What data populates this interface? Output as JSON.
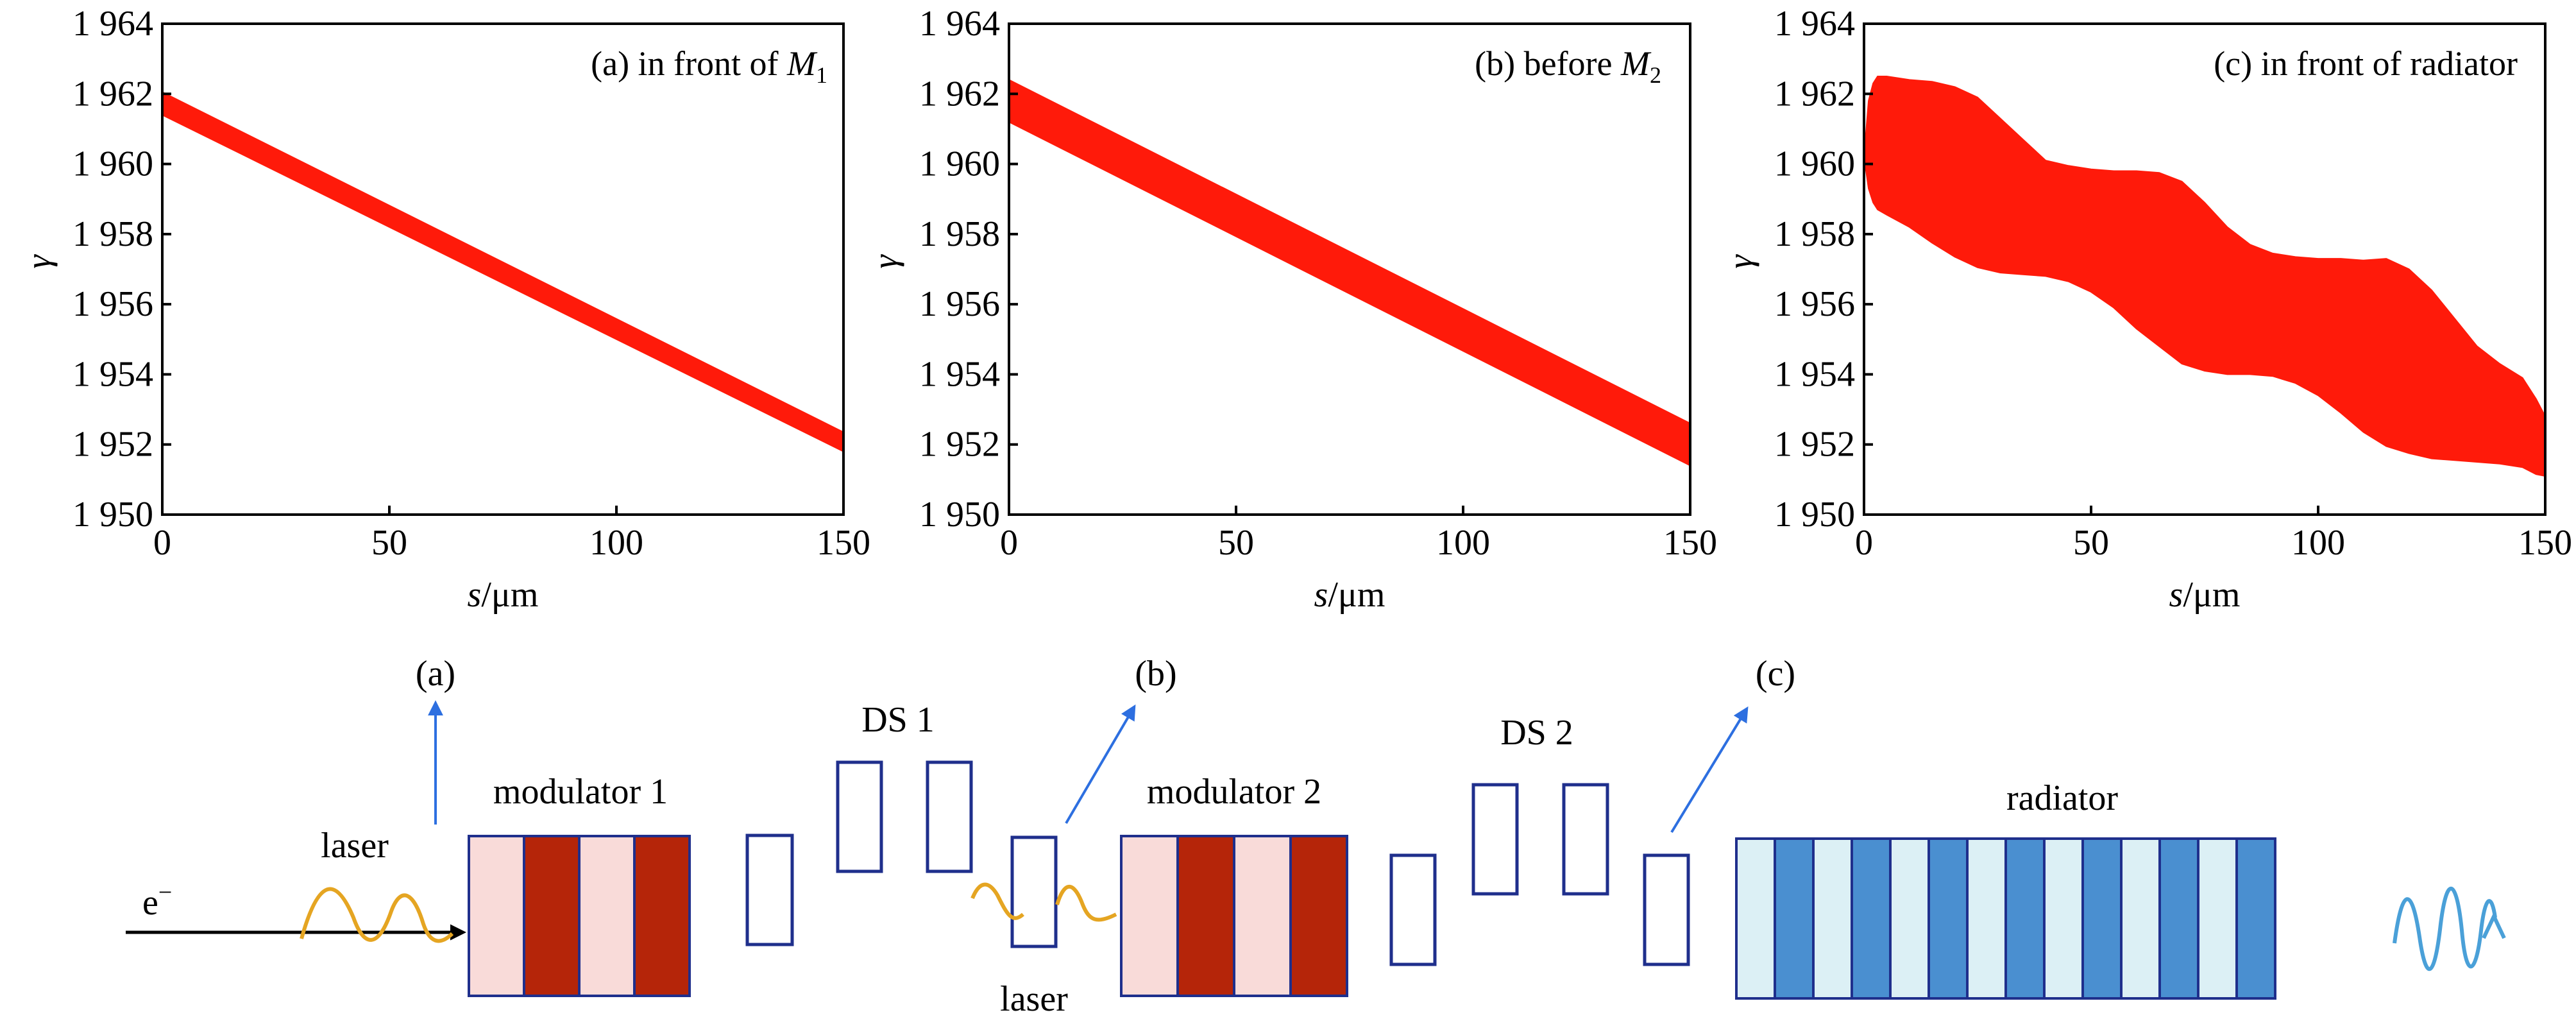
{
  "chart_data": [
    {
      "type": "area",
      "panel_label": "(a) in front of ",
      "panel_label_sym": "M",
      "panel_label_sub": "1",
      "xlabel_sym": "s",
      "xlabel_unit": "/μm",
      "ylabel": "γ",
      "xlim": [
        0,
        150
      ],
      "ylim": [
        1950,
        1964
      ],
      "xticks": [
        "0",
        "50",
        "100",
        "150"
      ],
      "yticks": [
        "1 950",
        "1 952",
        "1 954",
        "1 956",
        "1 958",
        "1 960",
        "1 962",
        "1 964"
      ],
      "series": [
        {
          "color": "#ff1a0a",
          "x": [
            0,
            150
          ],
          "upper": [
            1962.05,
            1952.35
          ],
          "lower": [
            1961.4,
            1951.8
          ]
        }
      ]
    },
    {
      "type": "area",
      "panel_label": "(b) before ",
      "panel_label_sym": "M",
      "panel_label_sub": "2",
      "xlabel_sym": "s",
      "xlabel_unit": "/μm",
      "ylabel": "γ",
      "xlim": [
        0,
        150
      ],
      "ylim": [
        1950,
        1964
      ],
      "xticks": [
        "0",
        "50",
        "100",
        "150"
      ],
      "yticks": [
        "1 950",
        "1 952",
        "1 954",
        "1 956",
        "1 958",
        "1 960",
        "1 962",
        "1 964"
      ],
      "series": [
        {
          "color": "#ff1a0a",
          "x": [
            0,
            150
          ],
          "upper": [
            1962.4,
            1952.6
          ],
          "lower": [
            1961.2,
            1951.4
          ]
        }
      ]
    },
    {
      "type": "area",
      "panel_label": "(c) in front of radiator",
      "panel_label_sym": "",
      "panel_label_sub": "",
      "xlabel_sym": "s",
      "xlabel_unit": "/μm",
      "ylabel": "γ",
      "xlim": [
        0,
        150
      ],
      "ylim": [
        1950,
        1964
      ],
      "xticks": [
        "0",
        "50",
        "100",
        "150"
      ],
      "yticks": [
        "1 950",
        "1 952",
        "1 954",
        "1 956",
        "1 958",
        "1 960",
        "1 962",
        "1 964"
      ],
      "series": [
        {
          "color": "#ff1a0a",
          "x": [
            0,
            1,
            2,
            3,
            5,
            10,
            15,
            20,
            25,
            30,
            35,
            40,
            45,
            50,
            55,
            60,
            65,
            70,
            75,
            80,
            85,
            90,
            95,
            100,
            105,
            110,
            115,
            120,
            125,
            130,
            135,
            140,
            145,
            148,
            150
          ],
          "upper": [
            1960.2,
            1961.8,
            1962.3,
            1962.5,
            1962.5,
            1962.4,
            1962.35,
            1962.2,
            1961.9,
            1961.3,
            1960.7,
            1960.1,
            1959.95,
            1959.85,
            1959.8,
            1959.8,
            1959.75,
            1959.5,
            1958.9,
            1958.2,
            1957.7,
            1957.45,
            1957.35,
            1957.3,
            1957.3,
            1957.25,
            1957.3,
            1957.0,
            1956.4,
            1955.6,
            1954.8,
            1954.3,
            1953.9,
            1953.3,
            1952.8
          ],
          "lower": [
            1960.2,
            1959.3,
            1958.9,
            1958.7,
            1958.55,
            1958.2,
            1957.75,
            1957.35,
            1957.05,
            1956.9,
            1956.85,
            1956.8,
            1956.65,
            1956.35,
            1955.9,
            1955.3,
            1954.8,
            1954.3,
            1954.1,
            1954.0,
            1954.0,
            1953.95,
            1953.75,
            1953.4,
            1952.9,
            1952.35,
            1951.95,
            1951.75,
            1951.6,
            1951.55,
            1951.5,
            1951.45,
            1951.35,
            1951.15,
            1951.1
          ]
        }
      ]
    }
  ],
  "schematic": {
    "markers": [
      "(a)",
      "(b)",
      "(c)"
    ],
    "modulator1": "modulator 1",
    "modulator2": "modulator 2",
    "ds1": "DS 1",
    "ds2": "DS 2",
    "radiator": "radiator",
    "laser": "laser",
    "electron": "e",
    "electron_sup": "−",
    "colors": {
      "outline": "#1f2f8c",
      "mod_light": "#f9dbd9",
      "mod_dark": "#b52509",
      "rad_light": "#dcf0f5",
      "rad_dark": "#4a8fd0",
      "laser": "#e5a522",
      "output_wave": "#4aa0d8",
      "arrow": "#2d6fe0"
    }
  }
}
